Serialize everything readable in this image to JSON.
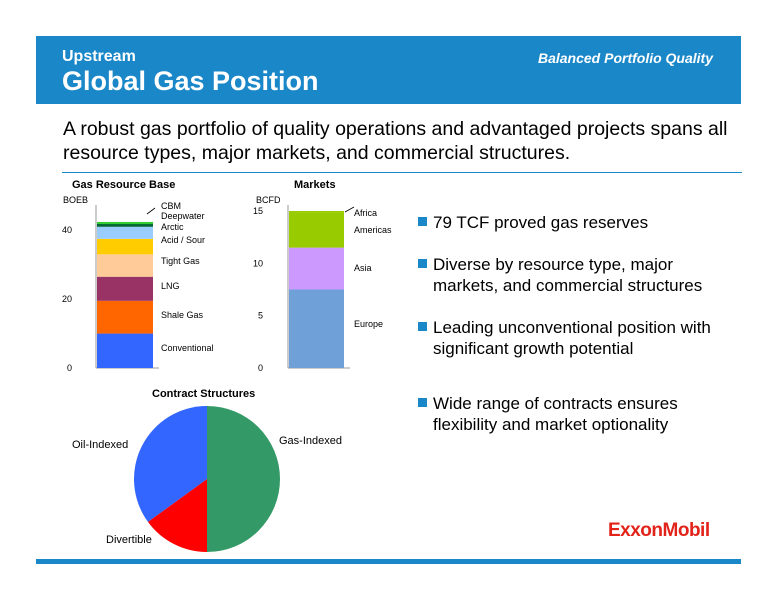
{
  "header": {
    "section": "Upstream",
    "title": "Global Gas Position",
    "tagline": "Balanced Portfolio Quality"
  },
  "headline": "A robust gas portfolio of quality operations and advantaged projects spans all resource types, major markets, and commercial structures.",
  "bullets": [
    "79 TCF proved gas reserves",
    "Diverse by resource type, major markets, and commercial structures",
    "Leading unconventional position with significant growth potential",
    "Wide range of contracts ensures flexibility and market optionality"
  ],
  "logo": "ExxonMobil",
  "colors": {
    "brand_blue": "#1a87c8",
    "logo_red": "#e2231a"
  },
  "chart_data": [
    {
      "type": "bar",
      "title": "Gas Resource Base",
      "ylabel": "BOEB",
      "ylim": [
        0,
        45
      ],
      "yticks": [
        0,
        20,
        40
      ],
      "stacked": true,
      "series": [
        {
          "name": "Conventional",
          "value": 10,
          "color": "#3366ff"
        },
        {
          "name": "Shale Gas",
          "value": 9.5,
          "color": "#ff6600"
        },
        {
          "name": "LNG",
          "value": 7,
          "color": "#993366"
        },
        {
          "name": "Tight Gas",
          "value": 6.5,
          "color": "#ffcc99"
        },
        {
          "name": "Acid / Sour",
          "value": 4.5,
          "color": "#ffcc00"
        },
        {
          "name": "Arctic",
          "value": 3.5,
          "color": "#99ccff"
        },
        {
          "name": "Deepwater",
          "value": 0.8,
          "color": "#006633"
        },
        {
          "name": "CBM",
          "value": 0.6,
          "color": "#33cc33"
        }
      ]
    },
    {
      "type": "bar",
      "title": "Markets",
      "ylabel": "BCFD",
      "ylim": [
        0,
        15
      ],
      "yticks": [
        0,
        5,
        10,
        15
      ],
      "stacked": true,
      "series": [
        {
          "name": "Europe",
          "value": 7.5,
          "color": "#6fa0d8"
        },
        {
          "name": "Asia",
          "value": 4,
          "color": "#cc99ff"
        },
        {
          "name": "Americas",
          "value": 3.4,
          "color": "#99cc00"
        },
        {
          "name": "Africa",
          "value": 0.1,
          "color": "#99cc00"
        }
      ]
    },
    {
      "type": "pie",
      "title": "Contract Structures",
      "slices": [
        {
          "name": "Gas-Indexed",
          "value": 50,
          "color": "#339966"
        },
        {
          "name": "Divertible",
          "value": 15,
          "color": "#ff0000"
        },
        {
          "name": "Oil-Indexed",
          "value": 35,
          "color": "#3366ff"
        }
      ]
    }
  ]
}
